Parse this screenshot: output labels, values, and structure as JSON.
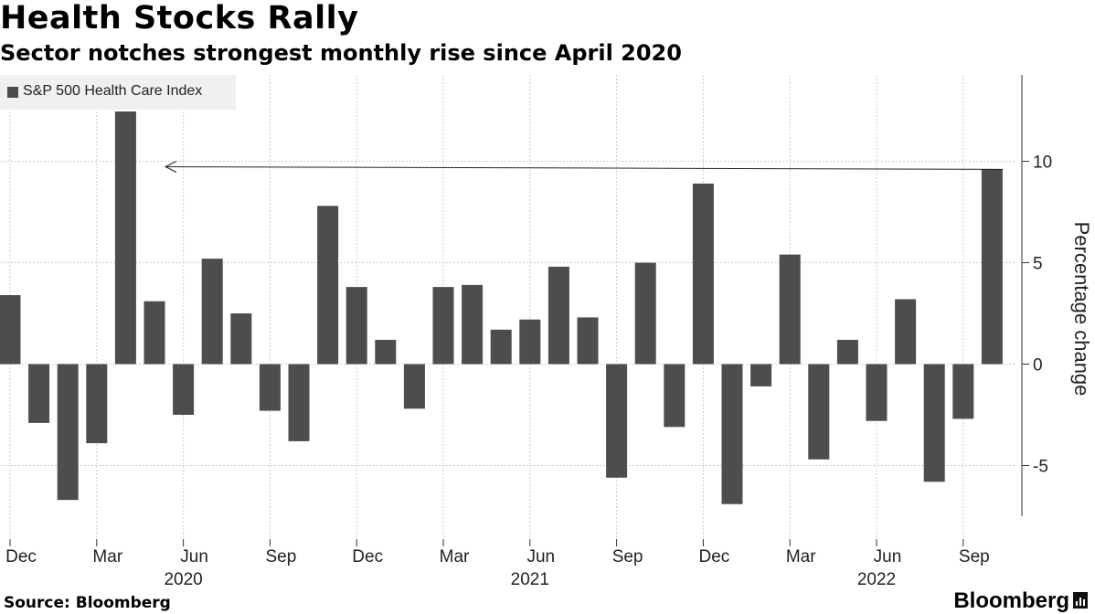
{
  "header": {
    "title": "Health Stocks Rally",
    "subtitle": "Sector notches strongest monthly rise since April 2020"
  },
  "footer": {
    "source": "Source: Bloomberg",
    "brand": "Bloomberg"
  },
  "colors": {
    "bar": "#4d4d4d",
    "grid": "#cccccc",
    "legend_bg": "#f0f0f0"
  },
  "chart_data": {
    "type": "bar",
    "title": "Health Stocks Rally",
    "subtitle": "Sector notches strongest monthly rise since April 2020",
    "series": [
      {
        "name": "S&P 500 Health Care Index",
        "values": [
          3.4,
          -2.9,
          -6.7,
          -3.9,
          12.7,
          3.1,
          -2.5,
          5.2,
          2.5,
          -2.3,
          -3.8,
          7.8,
          3.8,
          1.2,
          -2.2,
          3.8,
          3.9,
          1.7,
          2.2,
          4.8,
          2.3,
          -5.6,
          5.0,
          -3.1,
          8.9,
          -6.9,
          -1.1,
          5.4,
          -4.7,
          1.2,
          -2.8,
          3.2,
          -5.8,
          -2.7,
          9.6
        ]
      }
    ],
    "categories": [
      "2019-12",
      "2020-01",
      "2020-02",
      "2020-03",
      "2020-04",
      "2020-05",
      "2020-06",
      "2020-07",
      "2020-08",
      "2020-09",
      "2020-10",
      "2020-11",
      "2020-12",
      "2021-01",
      "2021-02",
      "2021-03",
      "2021-04",
      "2021-05",
      "2021-06",
      "2021-07",
      "2021-08",
      "2021-09",
      "2021-10",
      "2021-11",
      "2021-12",
      "2022-01",
      "2022-02",
      "2022-03",
      "2022-04",
      "2022-05",
      "2022-06",
      "2022-07",
      "2022-08",
      "2022-09",
      "2022-10"
    ],
    "x_ticks": [
      {
        "index": 0,
        "label": "Dec"
      },
      {
        "index": 3,
        "label": "Mar"
      },
      {
        "index": 6,
        "label": "Jun"
      },
      {
        "index": 9,
        "label": "Sep"
      },
      {
        "index": 12,
        "label": "Dec"
      },
      {
        "index": 15,
        "label": "Mar"
      },
      {
        "index": 18,
        "label": "Jun"
      },
      {
        "index": 21,
        "label": "Sep"
      },
      {
        "index": 24,
        "label": "Dec"
      },
      {
        "index": 27,
        "label": "Mar"
      },
      {
        "index": 30,
        "label": "Jun"
      },
      {
        "index": 33,
        "label": "Sep"
      }
    ],
    "year_labels": [
      {
        "index": 6,
        "label": "2020"
      },
      {
        "index": 18,
        "label": "2021"
      },
      {
        "index": 30,
        "label": "2022"
      }
    ],
    "y_ticks": [
      10,
      5,
      0,
      -5
    ],
    "ylim": [
      -8,
      14
    ],
    "ylabel": "Percentage change",
    "xlabel": "",
    "grid": true,
    "legend": "top-left",
    "annotation": {
      "type": "arrow",
      "from_index": 34,
      "to_index": 5,
      "value": 9.6
    }
  }
}
